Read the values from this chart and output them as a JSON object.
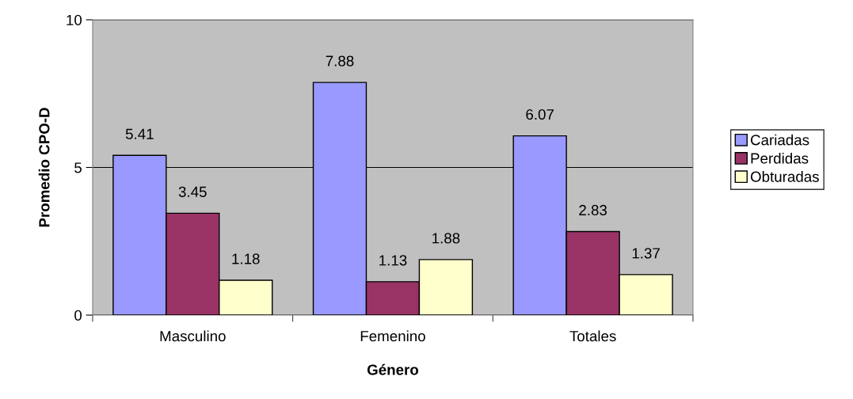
{
  "chart_data": {
    "type": "bar",
    "xlabel": "Género",
    "ylabel": "Promedio CPO-D",
    "categories": [
      "Masculino",
      "Femenino",
      "Totales"
    ],
    "series": [
      {
        "name": "Cariadas",
        "color": "#9999ff",
        "values": [
          5.41,
          7.88,
          6.07
        ]
      },
      {
        "name": "Perdidas",
        "color": "#993366",
        "values": [
          3.45,
          1.13,
          2.83
        ]
      },
      {
        "name": "Obturadas",
        "color": "#ffffcc",
        "values": [
          1.18,
          1.88,
          1.37
        ]
      }
    ],
    "ylim": [
      0,
      10
    ],
    "yticks": [
      0,
      5,
      10
    ],
    "grid": "y",
    "legend": "right",
    "data_labels": true
  }
}
